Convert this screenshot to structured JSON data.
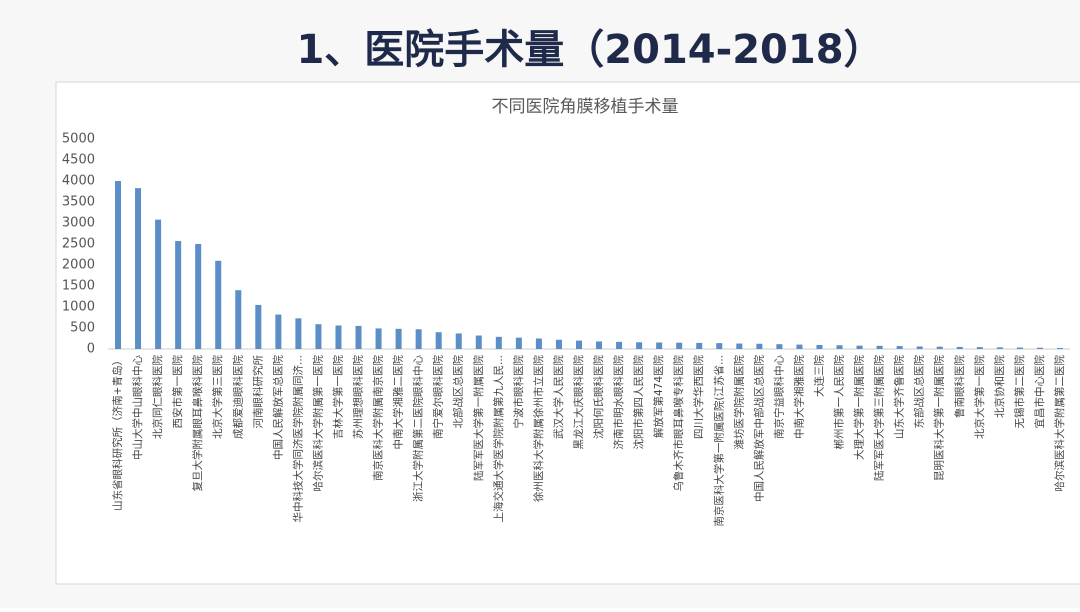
{
  "slide_title": "1、医院手术量（2014-2018）",
  "chart_data": {
    "type": "bar",
    "title": "不同医院角膜移植手术量",
    "categories": [
      "山东省眼科研究所（济南+青岛）",
      "中山大学中山眼科中心",
      "北京同仁眼科医院",
      "西安市第一医院",
      "复旦大学附属眼耳鼻喉科医院",
      "北京大学第三医院",
      "成都爱迪眼科医院",
      "河南眼科研究所",
      "中国人民解放军总医院",
      "华中科技大学同济医学院附属同济...",
      "哈尔滨医科大学附属第一医院",
      "吉林大学第一医院",
      "苏州理想眼科医院",
      "南京医科大学附属南京医院",
      "中南大学湘雅二医院",
      "浙江大学附属第二医院眼科中心",
      "南宁爱尔眼科医院",
      "北部战区总医院",
      "陆军军医大学第一附属医院",
      "上海交通大学医学院附属第九人民...",
      "宁波市眼科医院",
      "徐州医科大学附属徐州市立医院",
      "武汉大学人民医院",
      "黑龙江大庆眼科医院",
      "沈阳何氏眼科医院",
      "济南市明水眼科医院",
      "沈阳市第四人民医院",
      "解放军第474医院",
      "乌鲁木齐市眼耳鼻喉专科医院",
      "四川大学华西医院",
      "南京医科大学第一附属医院(江苏省...",
      "潍坊医学院附属医院",
      "中国人民解放军中部战区总医院",
      "南京宁益眼科中心",
      "中南大学湘雅医院",
      "大连三院",
      "郴州市第一人民医院",
      "大理大学第一附属医院",
      "陆军军医大学第三附属医院",
      "山东大学齐鲁医院",
      "东部战区总医院",
      "昆明医科大学第一附属医院",
      "鲁南眼科医院",
      "北京大学第一医院",
      "北京协和医院",
      "无锡市第二医院",
      "宜昌市中心医院",
      "哈尔滨医科大学附属第二医院"
    ],
    "values": [
      4000,
      3830,
      3080,
      2570,
      2500,
      2100,
      1400,
      1050,
      820,
      730,
      590,
      560,
      550,
      490,
      480,
      470,
      400,
      370,
      320,
      290,
      270,
      250,
      220,
      200,
      180,
      170,
      160,
      155,
      150,
      145,
      140,
      130,
      125,
      115,
      105,
      95,
      90,
      80,
      75,
      70,
      60,
      55,
      50,
      45,
      40,
      35,
      30,
      25
    ],
    "color": "#5b8ec7",
    "ylim": [
      0,
      5000
    ],
    "yticks": [
      0,
      500,
      1000,
      1500,
      2000,
      2500,
      3000,
      3500,
      4000,
      4500,
      5000
    ],
    "grid": false
  }
}
